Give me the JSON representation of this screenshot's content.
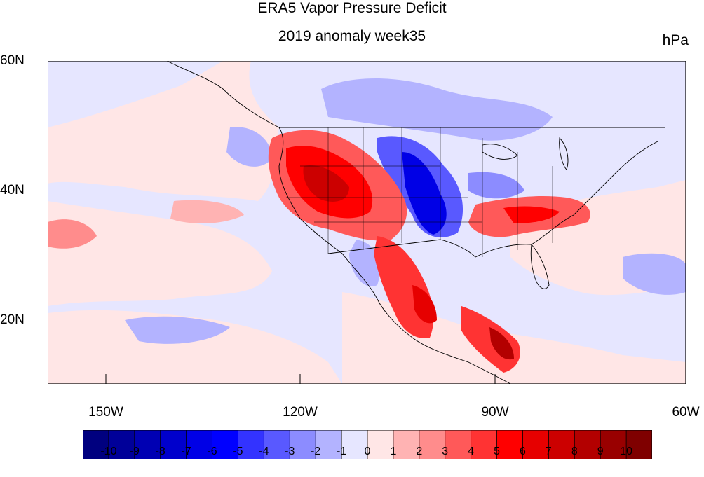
{
  "title": "ERA5 Vapor Pressure Deficit",
  "subtitle": "2019 anomaly week35",
  "units": "hPa",
  "lat_labels": [
    "60N",
    "40N",
    "20N"
  ],
  "lon_labels": [
    "150W",
    "120W",
    "90W",
    "60W"
  ],
  "colorbar": {
    "labels": [
      "-10",
      "-9",
      "-8",
      "-7",
      "-6",
      "-5",
      "-4",
      "-3",
      "-2",
      "-1",
      "0",
      "1",
      "2",
      "3",
      "4",
      "5",
      "6",
      "7",
      "8",
      "9",
      "10"
    ],
    "colors": [
      "#00007f",
      "#000099",
      "#0000b3",
      "#0000cc",
      "#0000e6",
      "#0000ff",
      "#3333ff",
      "#5959ff",
      "#8c8cff",
      "#b3b3ff",
      "#e6e6ff",
      "#ffe6e6",
      "#ffb3b3",
      "#ff8c8c",
      "#ff5959",
      "#ff3333",
      "#ff0000",
      "#e60000",
      "#cc0000",
      "#b30000",
      "#990000",
      "#7f0000"
    ]
  },
  "map": {
    "background_color": "#e6e6ff"
  }
}
